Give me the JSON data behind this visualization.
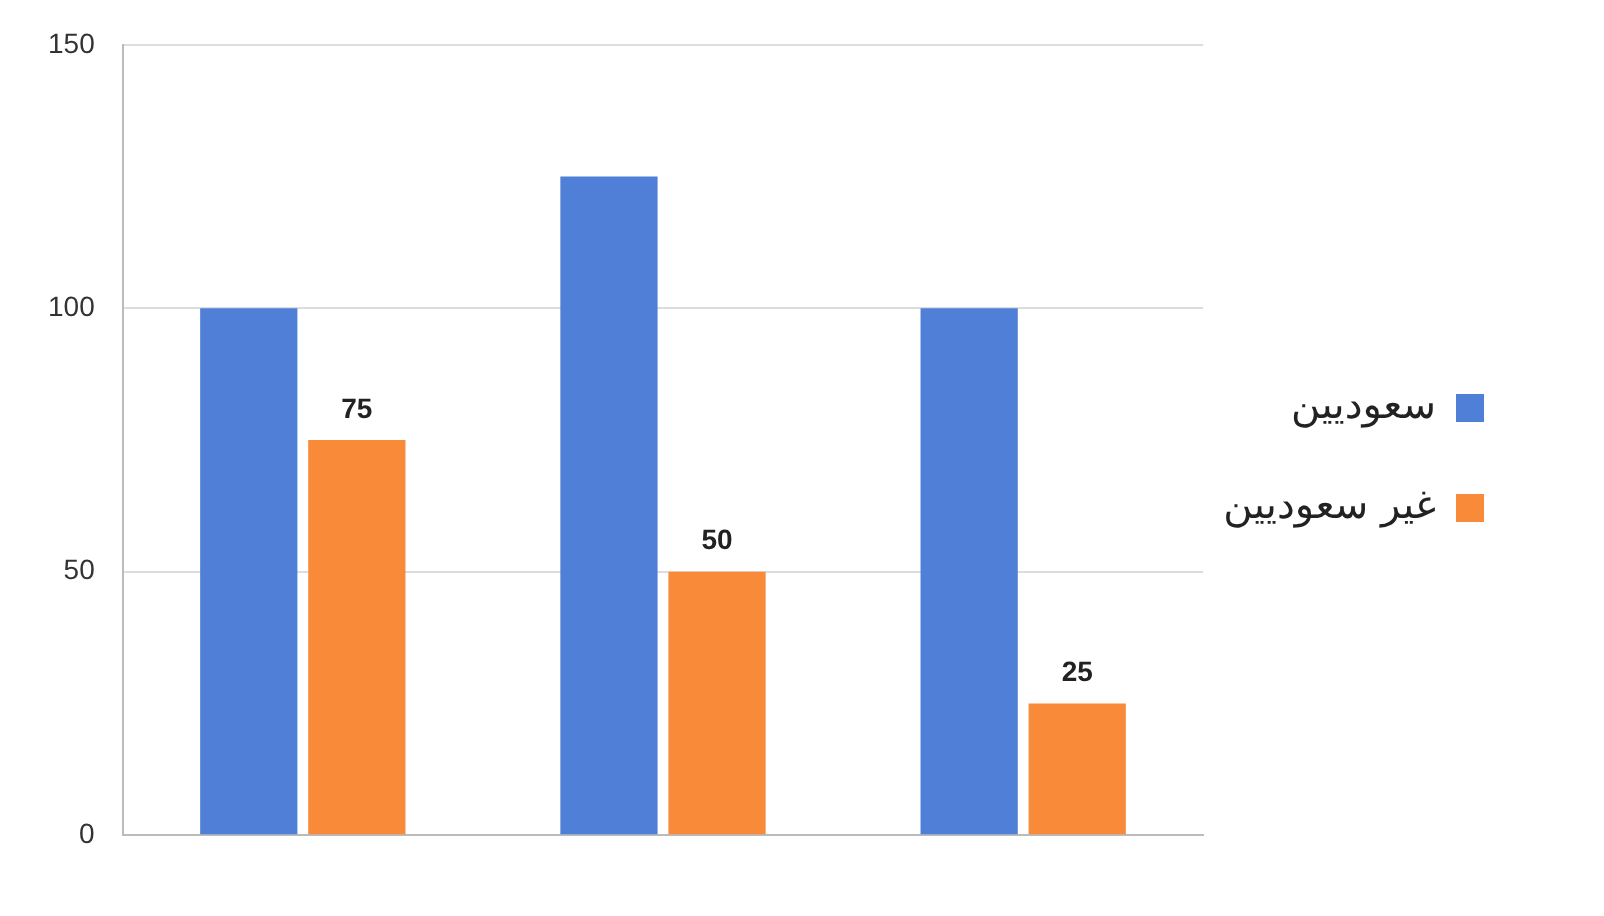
{
  "chart_data": {
    "type": "bar",
    "categories": [
      null,
      null,
      null
    ],
    "series": [
      {
        "name": "سعوديين",
        "color": "#4f7fd6",
        "values": [
          100,
          125,
          100
        ]
      },
      {
        "name": "غير سعوديين",
        "color": "#f88a3a",
        "values": [
          75,
          50,
          25
        ],
        "value_labels": [
          "75",
          "50",
          "25"
        ]
      }
    ],
    "ylim": [
      0,
      150
    ],
    "yticks": [
      0,
      50,
      100,
      150
    ],
    "grid": "y",
    "legend": "right"
  }
}
